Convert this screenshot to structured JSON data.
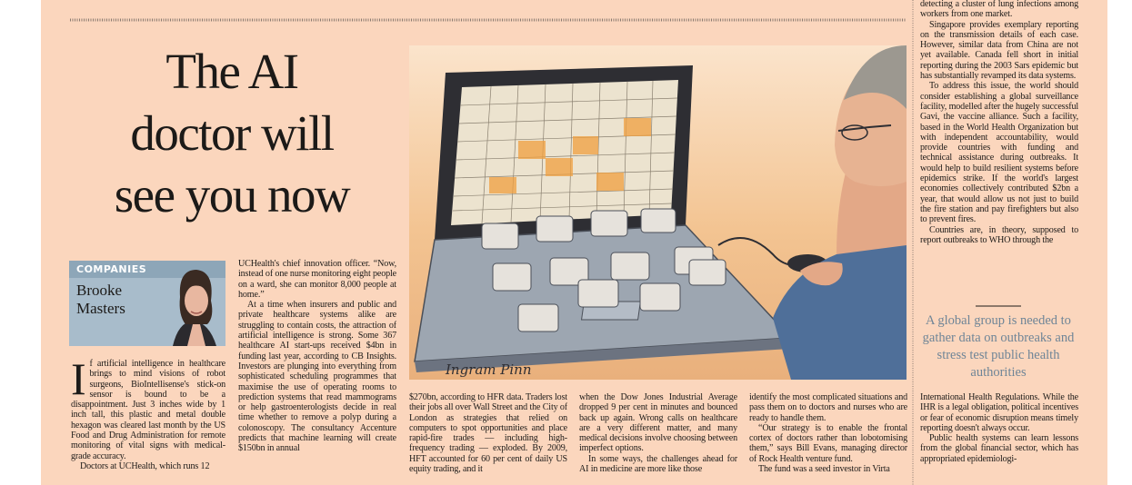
{
  "headline": [
    "The AI",
    "doctor will",
    "see you now"
  ],
  "companies": {
    "label": "COMPANIES",
    "author": [
      "Brooke",
      "Masters"
    ]
  },
  "illustration": {
    "credit": "Ingram Pinn"
  },
  "columns": [
    {
      "dropcap": "I",
      "paragraphs": [
        "f artificial intelligence in healthcare brings to mind visions of robot surgeons, BioIntellisense's stick-on sensor is bound to be a disappointment. Just 3 inches wide by 1 inch tall, this plastic and metal double hexagon was cleared last month by the US Food and Drug Administration for remote monitoring of vital signs with medical-grade accuracy.",
        "Doctors at UCHealth, which runs 12"
      ]
    },
    {
      "paragraphs": [
        "UCHealth's chief innovation officer. “Now, instead of one nurse monitoring eight people on a ward, she can monitor 8,000 people at home.”",
        "At a time when insurers and public and private healthcare systems alike are struggling to contain costs, the attraction of artificial intelligence is strong. Some 367 healthcare AI start-ups received $4bn in funding last year, according to CB Insights. Investors are plunging into everything from sophisticated scheduling programmes that maximise the use of operating rooms to prediction systems that read mammograms or help gastroenterologists decide in real time whether to remove a polyp during a colonoscopy. The consultancy Accenture predicts that machine learning will create $150bn in annual"
      ]
    },
    {
      "paragraphs": [
        "$270bn, according to HFR data. Traders lost their jobs all over Wall Street and the City of London as strategies that relied on computers to spot opportunities and place rapid-fire trades — including high-frequency trading — exploded. By 2009, HFT accounted for 60 per cent of daily US equity trading, and it"
      ]
    },
    {
      "paragraphs": [
        "when the Dow Jones Industrial Average dropped 9 per cent in minutes and bounced back up again. Wrong calls on healthcare are a very different matter, and many medical decisions involve choosing between imperfect options.",
        "In some ways, the challenges ahead for AI in medicine are more like those"
      ]
    },
    {
      "paragraphs": [
        "identify the most complicated situations and pass them on to doctors and nurses who are ready to handle them.",
        "“Our strategy is to enable the frontal cortex of doctors rather than lobotomising them,” says Bill Evans, managing director of Rock Health venture fund.",
        "The fund was a seed investor in Virta"
      ]
    },
    {
      "paragraphs": [
        "detecting a cluster of lung infections among workers from one market.",
        "Singapore provides exemplary reporting on the transmission details of each case. However, similar data from China are not yet available. Canada fell short in initial reporting during the 2003 Sars epidemic but has substantially revamped its data systems.",
        "To address this issue, the world should consider establishing a global surveillance facility, modelled after the hugely successful Gavi, the vaccine alliance. Such a facility, based in the World Health Organization but with independent accountability, would provide countries with funding and technical assistance during outbreaks. It would help to build resilient systems before epidemics strike. If the world's largest economies collectively contributed $2bn a year, that would allow us not just to build the fire station and pay firefighters but also to prevent fires.",
        "Countries are, in theory, supposed to report outbreaks to WHO through the"
      ]
    },
    {
      "paragraphs": [
        "International Health Regulations. While the IHR is a legal obligation, political incentives or fear of economic disruption means timely reporting doesn't always occur.",
        "Public health systems can learn lessons from the global financial sector, which has appropriated epidemiologi-"
      ]
    }
  ],
  "pull_quote": "A global group is needed to gather data on outbreaks and stress test public health authorities"
}
